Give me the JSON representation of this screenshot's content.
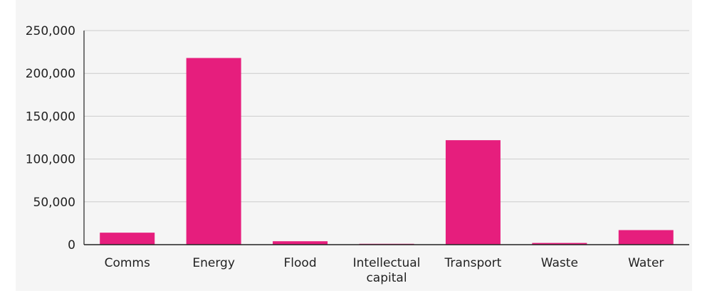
{
  "chart_data": {
    "type": "bar",
    "title": "",
    "xlabel": "",
    "ylabel": "",
    "categories": [
      [
        "Comms"
      ],
      [
        "Energy"
      ],
      [
        "Flood"
      ],
      [
        "Intellectual",
        "capital"
      ],
      [
        "Transport"
      ],
      [
        "Waste"
      ],
      [
        "Water"
      ]
    ],
    "values": [
      14000,
      218000,
      4000,
      1000,
      122000,
      2000,
      17000
    ],
    "ylim": [
      0,
      250000
    ],
    "yticks": [
      "0",
      "50,000",
      "100,000",
      "150,000",
      "200,000",
      "250,000"
    ],
    "grid": true,
    "legend": "none",
    "colors": {
      "bar": "#e61e7d",
      "grid": "#cccccc",
      "axis": "#222222",
      "background": "#f5f5f5"
    }
  }
}
